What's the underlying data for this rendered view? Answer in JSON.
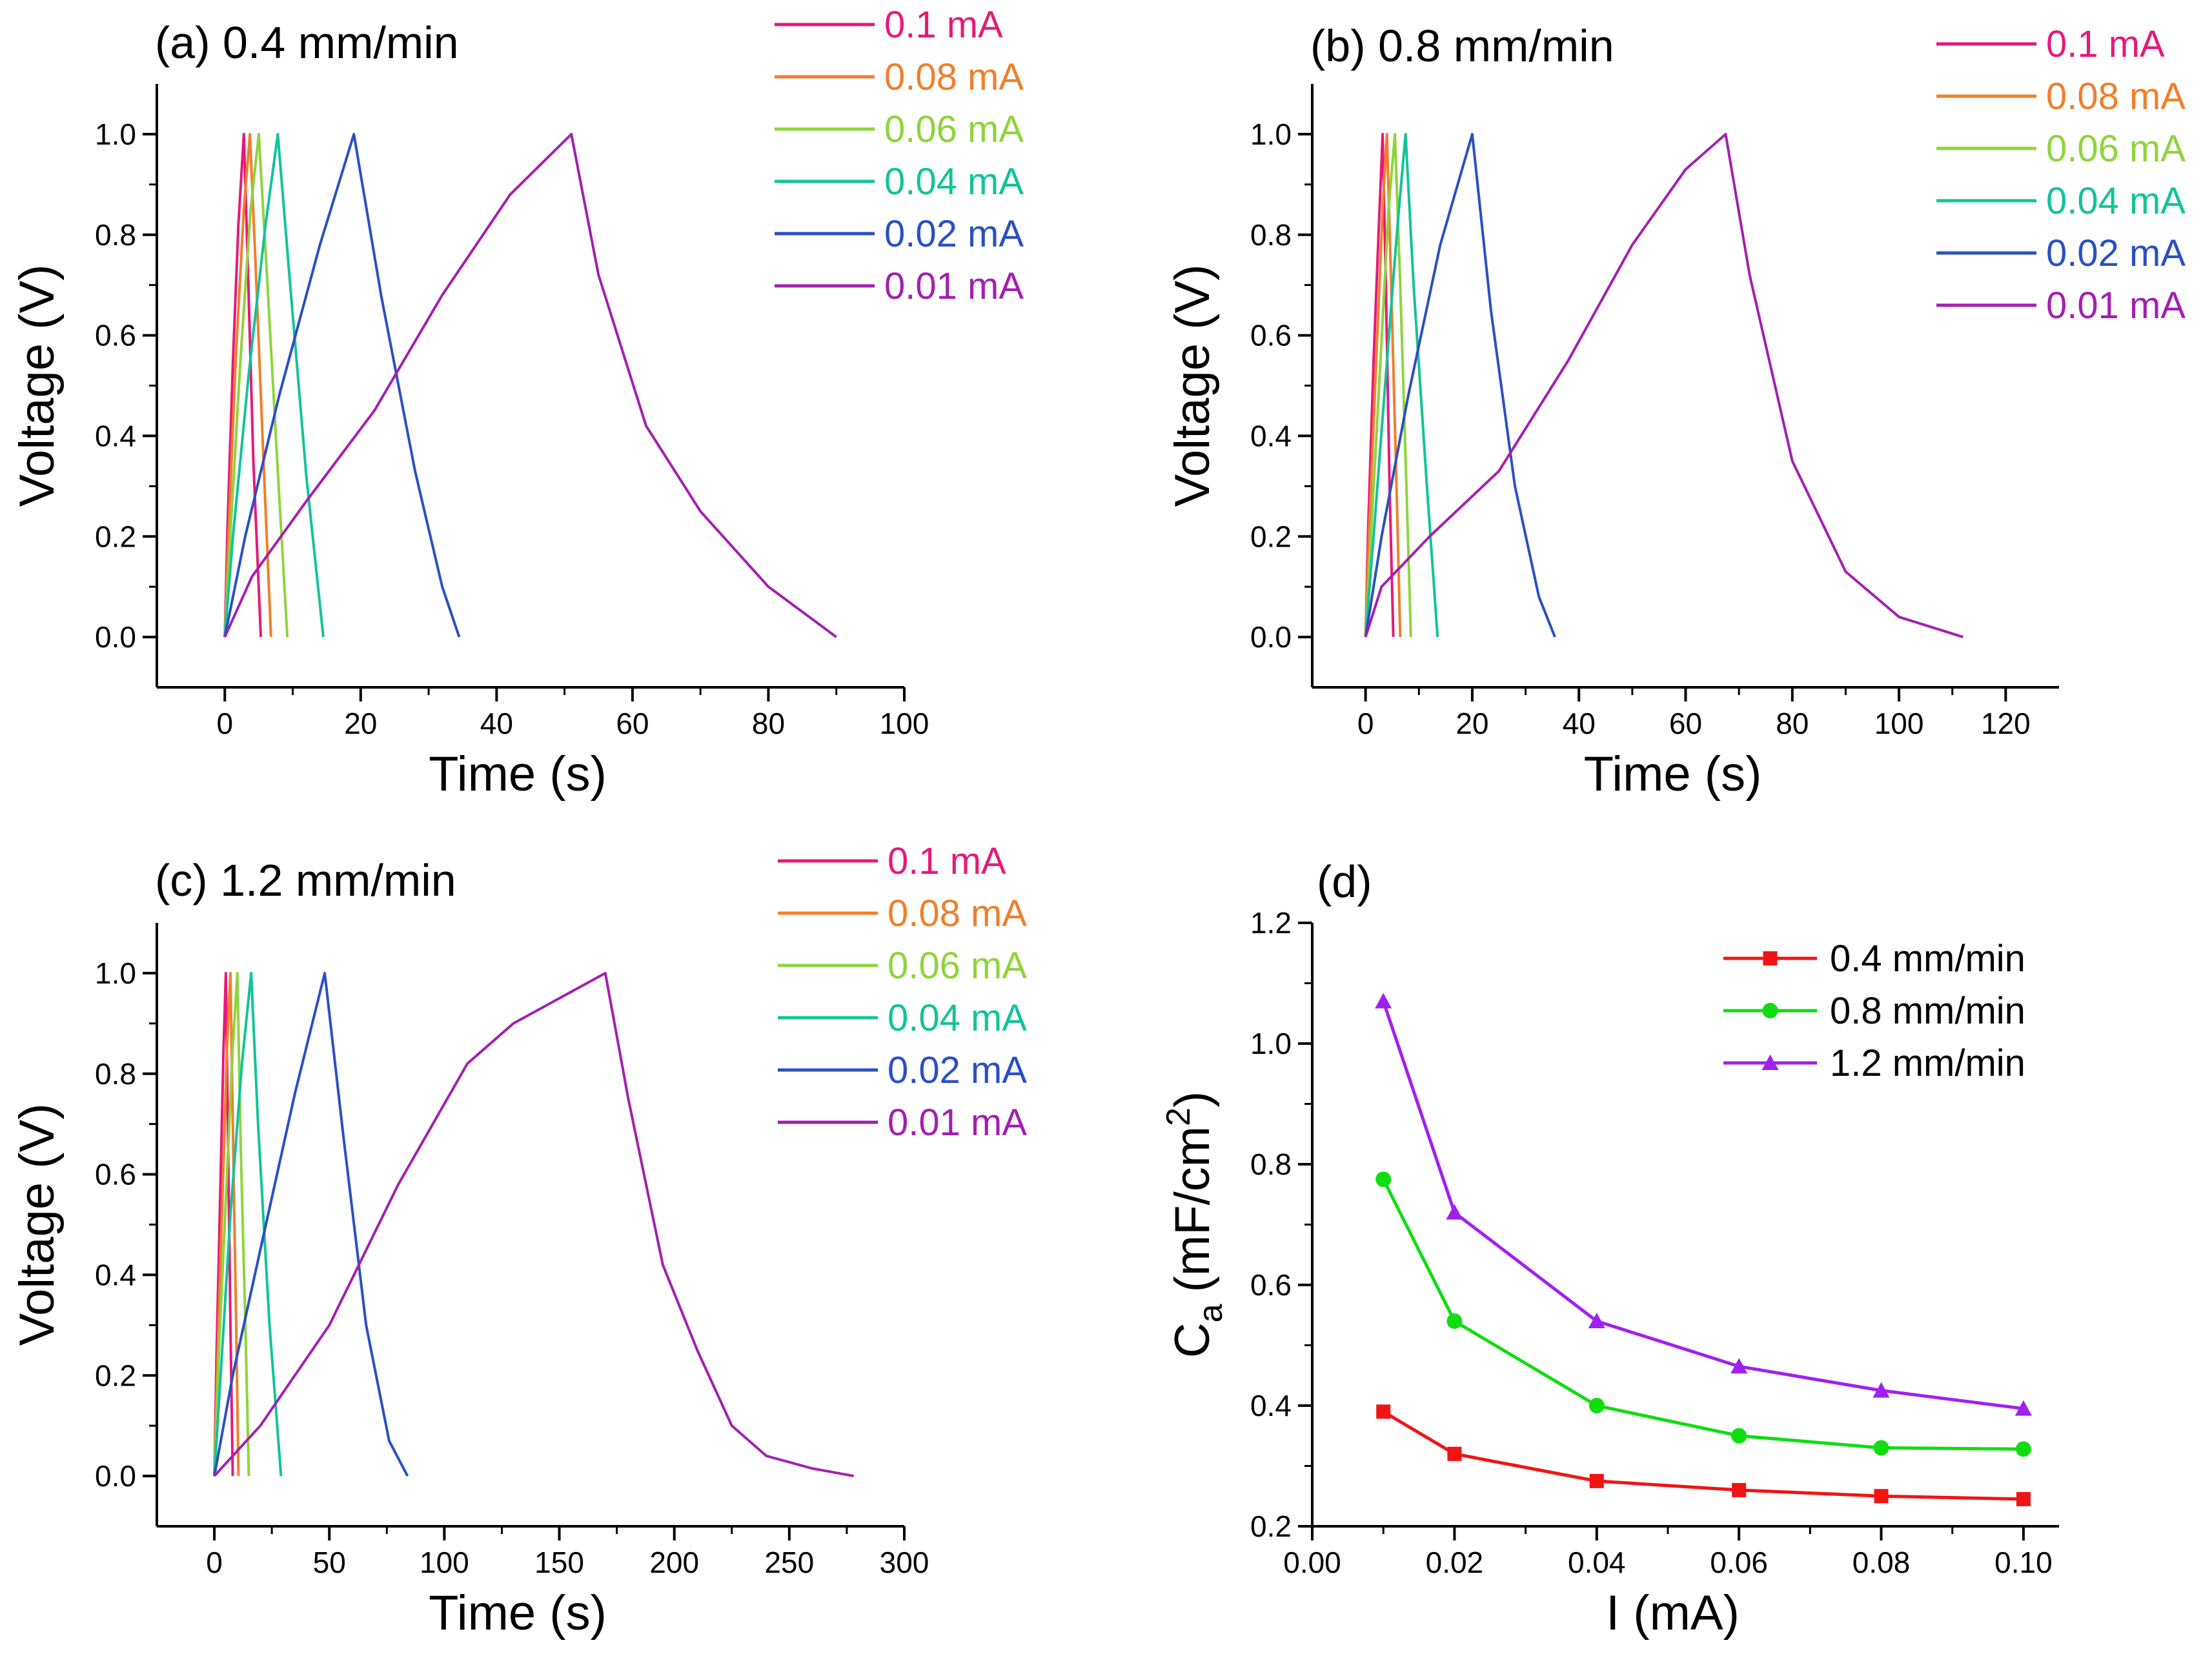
{
  "figure": "GCD curves and areal capacitance",
  "colors": {
    "0.1 mA": "#e6197a",
    "0.08 mA": "#f07f2a",
    "0.06 mA": "#8fd43c",
    "0.04 mA": "#12c39a",
    "0.02 mA": "#2a4fc4",
    "0.01 mA": "#a31fb0",
    "axis": "#000000",
    "d_04": "#f01414",
    "d_08": "#10dd10",
    "d_12": "#a020f0"
  },
  "chart_data": [
    {
      "id": "a",
      "type": "line",
      "title": "(a) 0.4 mm/min",
      "xlabel": "Time (s)",
      "ylabel": "Voltage (V)",
      "xlim": [
        -10,
        100
      ],
      "ylim": [
        -0.1,
        1.1
      ],
      "xticks": [
        0,
        20,
        40,
        60,
        80,
        100
      ],
      "yticks": [
        0.0,
        0.2,
        0.4,
        0.6,
        0.8,
        1.0
      ],
      "xtick_labels": [
        "0",
        "20",
        "40",
        "60",
        "80",
        "100"
      ],
      "ytick_labels": [
        "0.0",
        "0.2",
        "0.4",
        "0.6",
        "0.8",
        "1.0"
      ],
      "legend": [
        "0.1 mA",
        "0.08 mA",
        "0.06 mA",
        "0.04 mA",
        "0.02 mA",
        "0.01 mA"
      ],
      "series": [
        {
          "name": "0.1 mA",
          "x": [
            0,
            0.4,
            1.2,
            2.0,
            2.8,
            3.3,
            4.2,
            5.3
          ],
          "y": [
            0,
            0.22,
            0.55,
            0.82,
            1.0,
            0.78,
            0.35,
            0
          ]
        },
        {
          "name": "0.08 mA",
          "x": [
            0,
            0.6,
            1.6,
            2.8,
            3.7,
            4.5,
            5.7,
            6.8
          ],
          "y": [
            0,
            0.22,
            0.55,
            0.85,
            1.0,
            0.75,
            0.35,
            0
          ]
        },
        {
          "name": "0.06 mA",
          "x": [
            0,
            0.8,
            2.3,
            3.8,
            5.0,
            6.2,
            7.8,
            9.2
          ],
          "y": [
            0,
            0.2,
            0.55,
            0.85,
            1.0,
            0.72,
            0.33,
            0
          ]
        },
        {
          "name": "0.04 mA",
          "x": [
            0,
            1.2,
            3.5,
            6.0,
            7.8,
            9.5,
            12.0,
            14.5
          ],
          "y": [
            0,
            0.2,
            0.52,
            0.82,
            1.0,
            0.72,
            0.32,
            0
          ]
        },
        {
          "name": "0.02 mA",
          "x": [
            0,
            3.0,
            8.0,
            14.0,
            19.0,
            23.0,
            28.0,
            32.0,
            34.5
          ],
          "y": [
            0,
            0.2,
            0.48,
            0.78,
            1.0,
            0.68,
            0.33,
            0.1,
            0
          ]
        },
        {
          "name": "0.01 mA",
          "x": [
            0,
            4.0,
            12.0,
            22.0,
            32.0,
            42.0,
            51.0,
            55.0,
            62.0,
            70.0,
            80.0,
            90.0
          ],
          "y": [
            0,
            0.12,
            0.27,
            0.45,
            0.68,
            0.88,
            1.0,
            0.72,
            0.42,
            0.25,
            0.1,
            0
          ]
        }
      ]
    },
    {
      "id": "b",
      "type": "line",
      "title": "(b) 0.8 mm/min",
      "xlabel": "Time (s)",
      "ylabel": "Voltage (V)",
      "xlim": [
        -10,
        130
      ],
      "ylim": [
        -0.1,
        1.1
      ],
      "xticks": [
        0,
        20,
        40,
        60,
        80,
        100,
        120
      ],
      "yticks": [
        0.0,
        0.2,
        0.4,
        0.6,
        0.8,
        1.0
      ],
      "xtick_labels": [
        "0",
        "20",
        "40",
        "60",
        "80",
        "100",
        "120"
      ],
      "ytick_labels": [
        "0.0",
        "0.2",
        "0.4",
        "0.6",
        "0.8",
        "1.0"
      ],
      "legend": [
        "0.1 mA",
        "0.08 mA",
        "0.06 mA",
        "0.04 mA",
        "0.02 mA",
        "0.01 mA"
      ],
      "series": [
        {
          "name": "0.1 mA",
          "x": [
            0,
            0.5,
            1.5,
            2.5,
            3.2,
            3.8,
            4.5,
            5.2
          ],
          "y": [
            0,
            0.22,
            0.55,
            0.82,
            1.0,
            0.7,
            0.3,
            0
          ]
        },
        {
          "name": "0.08 mA",
          "x": [
            0,
            0.7,
            2.0,
            3.2,
            4.0,
            4.8,
            5.8,
            6.5
          ],
          "y": [
            0,
            0.22,
            0.55,
            0.85,
            1.0,
            0.7,
            0.3,
            0
          ]
        },
        {
          "name": "0.06 mA",
          "x": [
            0,
            1.0,
            2.8,
            4.3,
            5.5,
            6.5,
            7.6,
            8.5
          ],
          "y": [
            0,
            0.2,
            0.55,
            0.85,
            1.0,
            0.7,
            0.32,
            0
          ]
        },
        {
          "name": "0.04 mA",
          "x": [
            0,
            1.5,
            3.8,
            6.0,
            7.5,
            9.0,
            11.5,
            13.5
          ],
          "y": [
            0,
            0.2,
            0.52,
            0.82,
            1.0,
            0.7,
            0.3,
            0
          ]
        },
        {
          "name": "0.02 mA",
          "x": [
            0,
            3.0,
            8.0,
            14.0,
            20.0,
            23.5,
            28.0,
            32.5,
            35.5
          ],
          "y": [
            0,
            0.2,
            0.48,
            0.78,
            1.0,
            0.65,
            0.3,
            0.08,
            0
          ]
        },
        {
          "name": "0.01 mA",
          "x": [
            0,
            3.0,
            12.0,
            25.0,
            38.0,
            50.0,
            60.0,
            67.5,
            72.0,
            80.0,
            90.0,
            100.0,
            112.0
          ],
          "y": [
            0,
            0.1,
            0.2,
            0.33,
            0.55,
            0.78,
            0.93,
            1.0,
            0.72,
            0.35,
            0.13,
            0.04,
            0
          ]
        }
      ]
    },
    {
      "id": "c",
      "type": "line",
      "title": "(c) 1.2 mm/min",
      "xlabel": "Time (s)",
      "ylabel": "Voltage (V)",
      "xlim": [
        -25,
        300
      ],
      "ylim": [
        -0.1,
        1.1
      ],
      "xticks": [
        0,
        50,
        100,
        150,
        200,
        250,
        300
      ],
      "yticks": [
        0.0,
        0.2,
        0.4,
        0.6,
        0.8,
        1.0
      ],
      "xtick_labels": [
        "0",
        "50",
        "100",
        "150",
        "200",
        "250",
        "300"
      ],
      "ytick_labels": [
        "0.0",
        "0.2",
        "0.4",
        "0.6",
        "0.8",
        "1.0"
      ],
      "legend": [
        "0.1 mA",
        "0.08 mA",
        "0.06 mA",
        "0.04 mA",
        "0.02 mA",
        "0.01 mA"
      ],
      "series": [
        {
          "name": "0.1 mA",
          "x": [
            0,
            1.0,
            2.5,
            4.0,
            5.0,
            6.0,
            7.0,
            8.0
          ],
          "y": [
            0,
            0.25,
            0.55,
            0.85,
            1.0,
            0.65,
            0.3,
            0
          ]
        },
        {
          "name": "0.08 mA",
          "x": [
            0,
            1.5,
            3.5,
            5.5,
            7.0,
            8.2,
            9.5,
            10.5
          ],
          "y": [
            0,
            0.25,
            0.55,
            0.85,
            1.0,
            0.65,
            0.3,
            0
          ]
        },
        {
          "name": "0.06 mA",
          "x": [
            0,
            2.0,
            5.0,
            8.0,
            10.0,
            11.5,
            13.5,
            15.0
          ],
          "y": [
            0,
            0.25,
            0.55,
            0.85,
            1.0,
            0.65,
            0.3,
            0
          ]
        },
        {
          "name": "0.04 mA",
          "x": [
            0,
            3.0,
            7.0,
            12.0,
            16.0,
            19.0,
            24.0,
            29.0
          ],
          "y": [
            0,
            0.22,
            0.52,
            0.82,
            1.0,
            0.7,
            0.3,
            0
          ]
        },
        {
          "name": "0.02 mA",
          "x": [
            0,
            8.0,
            20.0,
            35.0,
            48.0,
            56.0,
            66.0,
            76.0,
            84.0
          ],
          "y": [
            0,
            0.2,
            0.45,
            0.76,
            1.0,
            0.68,
            0.3,
            0.07,
            0
          ]
        },
        {
          "name": "0.01 mA",
          "x": [
            0,
            20.0,
            50.0,
            80.0,
            110.0,
            130.0,
            150.0,
            170.0,
            180.0,
            195.0,
            210.0,
            225.0,
            240.0,
            260.0,
            278.0
          ],
          "y": [
            0,
            0.1,
            0.3,
            0.58,
            0.82,
            0.9,
            0.95,
            1.0,
            0.75,
            0.42,
            0.25,
            0.1,
            0.04,
            0.015,
            0
          ]
        }
      ]
    },
    {
      "id": "d",
      "type": "line",
      "title": "(d)",
      "xlabel": "I (mA)",
      "ylabel_main": "C",
      "ylabel_sub": "a",
      "ylabel_unit": "(mF/cm",
      "ylabel_sup": "2",
      "ylabel_close": ")",
      "xlim": [
        0.0,
        0.105
      ],
      "ylim": [
        0.2,
        1.2
      ],
      "xticks": [
        0.0,
        0.02,
        0.04,
        0.06,
        0.08,
        0.1
      ],
      "yticks": [
        0.2,
        0.4,
        0.6,
        0.8,
        1.0,
        1.2
      ],
      "xtick_labels": [
        "0.00",
        "0.02",
        "0.04",
        "0.06",
        "0.08",
        "0.10"
      ],
      "ytick_labels": [
        "0.2",
        "0.4",
        "0.6",
        "0.8",
        "1.0",
        "1.2"
      ],
      "legend": [
        "0.4 mm/min",
        "0.8 mm/min",
        "1.2 mm/min"
      ],
      "categories": [
        0.01,
        0.02,
        0.04,
        0.06,
        0.08,
        0.1
      ],
      "series": [
        {
          "name": "0.4 mm/min",
          "marker": "square",
          "values": [
            0.39,
            0.32,
            0.275,
            0.26,
            0.25,
            0.245
          ]
        },
        {
          "name": "0.8 mm/min",
          "marker": "circle",
          "values": [
            0.775,
            0.54,
            0.4,
            0.35,
            0.33,
            0.328
          ]
        },
        {
          "name": "1.2 mm/min",
          "marker": "triangle",
          "values": [
            1.07,
            0.72,
            0.54,
            0.465,
            0.425,
            0.395
          ]
        }
      ]
    }
  ]
}
